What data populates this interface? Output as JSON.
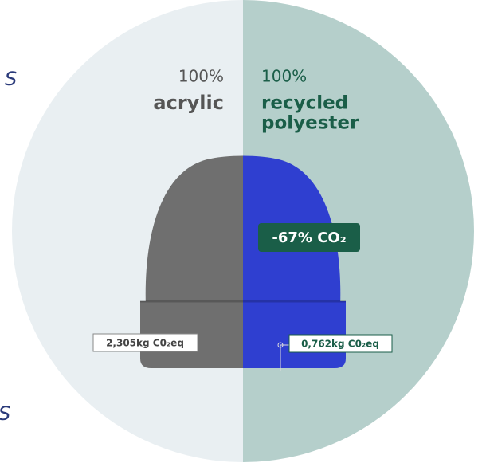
{
  "left_fragments": [
    "S",
    "S"
  ],
  "left": {
    "percent": "100%",
    "material": "acrylic",
    "label": "2,305kg C0₂eq"
  },
  "right": {
    "percent": "100%",
    "material_lines": [
      "recycled",
      "polyester"
    ],
    "label": "0,762kg C0₂eq"
  },
  "badge": "-67% CO₂"
}
